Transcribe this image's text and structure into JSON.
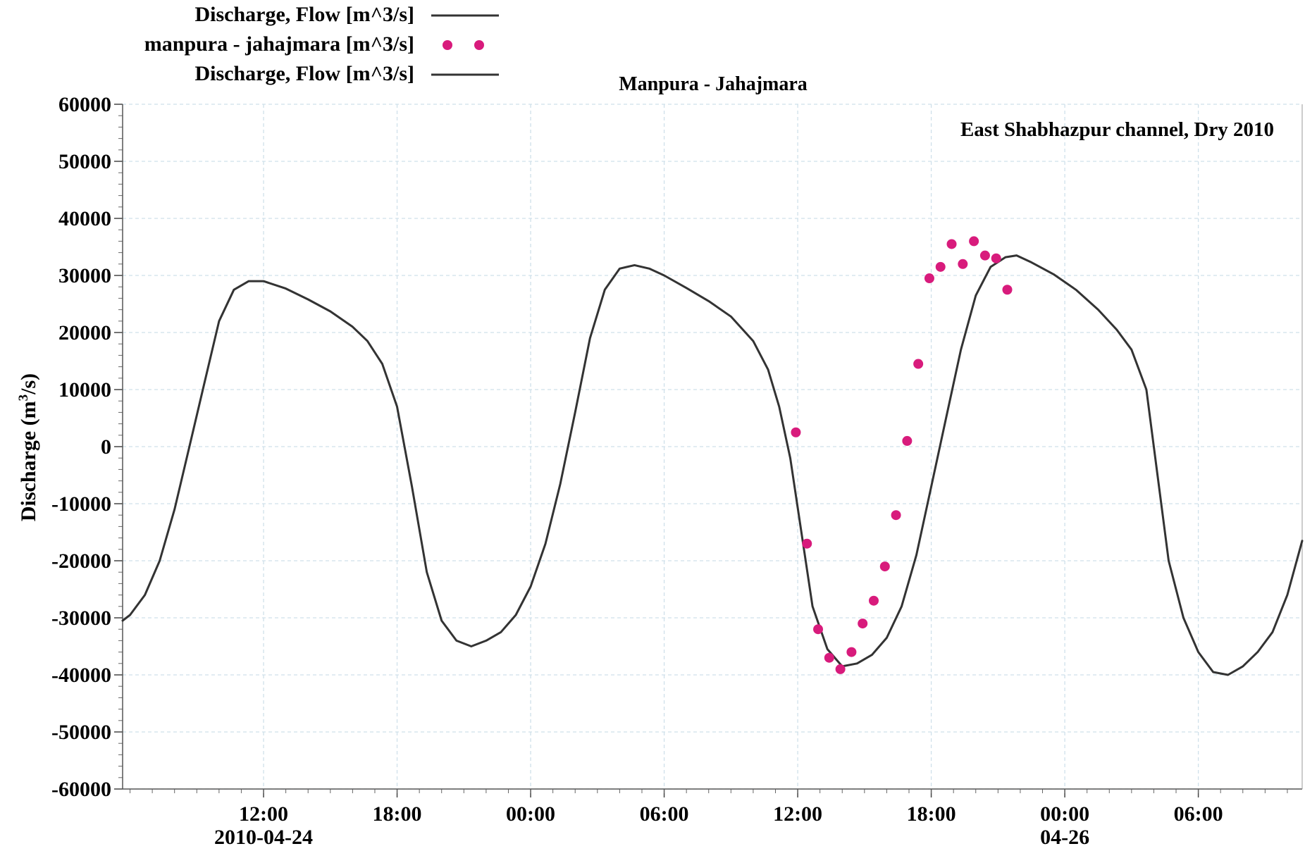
{
  "chart_data": {
    "type": "line",
    "title": "Manpura - Jahajmara",
    "annotation": "East Shabhazpur channel, Dry 2010",
    "ylabel_prefix": "Discharge (m",
    "ylabel_sup": "3",
    "ylabel_suffix": "/s)",
    "xlabel": "",
    "ylim": [
      -60000,
      60000
    ],
    "yticks": [
      60000,
      50000,
      40000,
      30000,
      20000,
      10000,
      0,
      -10000,
      -20000,
      -30000,
      -40000,
      -50000,
      -60000
    ],
    "xlim": [
      "2010-04-24 05:40",
      "2010-04-26 10:40"
    ],
    "xticks": [
      {
        "t": "2010-04-24 12:00",
        "label": "12:00",
        "date": "2010-04-24"
      },
      {
        "t": "2010-04-24 18:00",
        "label": "18:00",
        "date": ""
      },
      {
        "t": "2010-04-25 00:00",
        "label": "00:00",
        "date": ""
      },
      {
        "t": "2010-04-25 06:00",
        "label": "06:00",
        "date": ""
      },
      {
        "t": "2010-04-25 12:00",
        "label": "12:00",
        "date": ""
      },
      {
        "t": "2010-04-25 18:00",
        "label": "18:00",
        "date": ""
      },
      {
        "t": "2010-04-26 00:00",
        "label": "00:00",
        "date": "04-26"
      },
      {
        "t": "2010-04-26 06:00",
        "label": "06:00",
        "date": ""
      }
    ],
    "grid": true,
    "legend_position": "top-left",
    "legend": [
      {
        "label": "Discharge, Flow [m^3/s]",
        "style": "line"
      },
      {
        "label": "manpura - jahajmara [m^3/s]",
        "style": "dots"
      },
      {
        "label": "Discharge, Flow [m^3/s]",
        "style": "line"
      }
    ],
    "series": [
      {
        "name": "Discharge, Flow [m^3/s]",
        "style": "line",
        "color": "#333333",
        "points": [
          [
            "2010-04-24 05:40",
            -30500
          ],
          [
            "2010-04-24 06:00",
            -29500
          ],
          [
            "2010-04-24 06:40",
            -26000
          ],
          [
            "2010-04-24 07:20",
            -20000
          ],
          [
            "2010-04-24 08:00",
            -11000
          ],
          [
            "2010-04-24 08:40",
            0
          ],
          [
            "2010-04-24 09:20",
            11000
          ],
          [
            "2010-04-24 10:00",
            22000
          ],
          [
            "2010-04-24 10:40",
            27500
          ],
          [
            "2010-04-24 11:20",
            29000
          ],
          [
            "2010-04-24 12:00",
            29000
          ],
          [
            "2010-04-24 13:00",
            27700
          ],
          [
            "2010-04-24 14:00",
            25800
          ],
          [
            "2010-04-24 15:00",
            23700
          ],
          [
            "2010-04-24 16:00",
            21000
          ],
          [
            "2010-04-24 16:40",
            18500
          ],
          [
            "2010-04-24 17:20",
            14500
          ],
          [
            "2010-04-24 18:00",
            7000
          ],
          [
            "2010-04-24 18:40",
            -7000
          ],
          [
            "2010-04-24 19:20",
            -22000
          ],
          [
            "2010-04-24 20:00",
            -30500
          ],
          [
            "2010-04-24 20:40",
            -34000
          ],
          [
            "2010-04-24 21:20",
            -35000
          ],
          [
            "2010-04-24 22:00",
            -34000
          ],
          [
            "2010-04-24 22:40",
            -32500
          ],
          [
            "2010-04-24 23:20",
            -29500
          ],
          [
            "2010-04-25 00:00",
            -24500
          ],
          [
            "2010-04-25 00:40",
            -17000
          ],
          [
            "2010-04-25 01:20",
            -6500
          ],
          [
            "2010-04-25 02:00",
            6000
          ],
          [
            "2010-04-25 02:40",
            19000
          ],
          [
            "2010-04-25 03:20",
            27500
          ],
          [
            "2010-04-25 04:00",
            31200
          ],
          [
            "2010-04-25 04:40",
            31800
          ],
          [
            "2010-04-25 05:20",
            31200
          ],
          [
            "2010-04-25 06:00",
            30000
          ],
          [
            "2010-04-25 07:00",
            27800
          ],
          [
            "2010-04-25 08:00",
            25500
          ],
          [
            "2010-04-25 09:00",
            22800
          ],
          [
            "2010-04-25 10:00",
            18500
          ],
          [
            "2010-04-25 10:40",
            13500
          ],
          [
            "2010-04-25 11:10",
            7000
          ],
          [
            "2010-04-25 11:40",
            -2000
          ],
          [
            "2010-04-25 12:10",
            -15000
          ],
          [
            "2010-04-25 12:40",
            -28000
          ],
          [
            "2010-04-25 13:20",
            -35500
          ],
          [
            "2010-04-25 14:00",
            -38500
          ],
          [
            "2010-04-25 14:40",
            -38000
          ],
          [
            "2010-04-25 15:20",
            -36500
          ],
          [
            "2010-04-25 16:00",
            -33500
          ],
          [
            "2010-04-25 16:40",
            -28000
          ],
          [
            "2010-04-25 17:20",
            -19000
          ],
          [
            "2010-04-25 18:00",
            -7000
          ],
          [
            "2010-04-25 18:40",
            5000
          ],
          [
            "2010-04-25 19:20",
            17000
          ],
          [
            "2010-04-25 20:00",
            26500
          ],
          [
            "2010-04-25 20:40",
            31500
          ],
          [
            "2010-04-25 21:20",
            33200
          ],
          [
            "2010-04-25 21:50",
            33500
          ],
          [
            "2010-04-25 22:30",
            32300
          ],
          [
            "2010-04-25 23:30",
            30200
          ],
          [
            "2010-04-26 00:30",
            27500
          ],
          [
            "2010-04-26 01:30",
            24000
          ],
          [
            "2010-04-26 02:20",
            20500
          ],
          [
            "2010-04-26 03:00",
            17000
          ],
          [
            "2010-04-26 03:40",
            10000
          ],
          [
            "2010-04-26 04:10",
            -5000
          ],
          [
            "2010-04-26 04:40",
            -20000
          ],
          [
            "2010-04-26 05:20",
            -30000
          ],
          [
            "2010-04-26 06:00",
            -36000
          ],
          [
            "2010-04-26 06:40",
            -39500
          ],
          [
            "2010-04-26 07:20",
            -40000
          ],
          [
            "2010-04-26 08:00",
            -38500
          ],
          [
            "2010-04-26 08:40",
            -36000
          ],
          [
            "2010-04-26 09:20",
            -32500
          ],
          [
            "2010-04-26 10:00",
            -26000
          ],
          [
            "2010-04-26 10:40",
            -16500
          ]
        ]
      },
      {
        "name": "manpura - jahajmara [m^3/s]",
        "style": "dots",
        "color": "#d81b7c",
        "points": [
          [
            "2010-04-25 11:55",
            2500
          ],
          [
            "2010-04-25 12:25",
            -17000
          ],
          [
            "2010-04-25 12:55",
            -32000
          ],
          [
            "2010-04-25 13:25",
            -37000
          ],
          [
            "2010-04-25 13:55",
            -39000
          ],
          [
            "2010-04-25 14:25",
            -36000
          ],
          [
            "2010-04-25 14:55",
            -31000
          ],
          [
            "2010-04-25 15:25",
            -27000
          ],
          [
            "2010-04-25 15:55",
            -21000
          ],
          [
            "2010-04-25 16:25",
            -12000
          ],
          [
            "2010-04-25 16:55",
            1000
          ],
          [
            "2010-04-25 17:25",
            14500
          ],
          [
            "2010-04-25 17:55",
            29500
          ],
          [
            "2010-04-25 18:25",
            31500
          ],
          [
            "2010-04-25 18:55",
            35500
          ],
          [
            "2010-04-25 19:25",
            32000
          ],
          [
            "2010-04-25 19:55",
            36000
          ],
          [
            "2010-04-25 20:25",
            33500
          ],
          [
            "2010-04-25 20:55",
            33000
          ],
          [
            "2010-04-25 21:25",
            27500
          ]
        ]
      }
    ]
  }
}
